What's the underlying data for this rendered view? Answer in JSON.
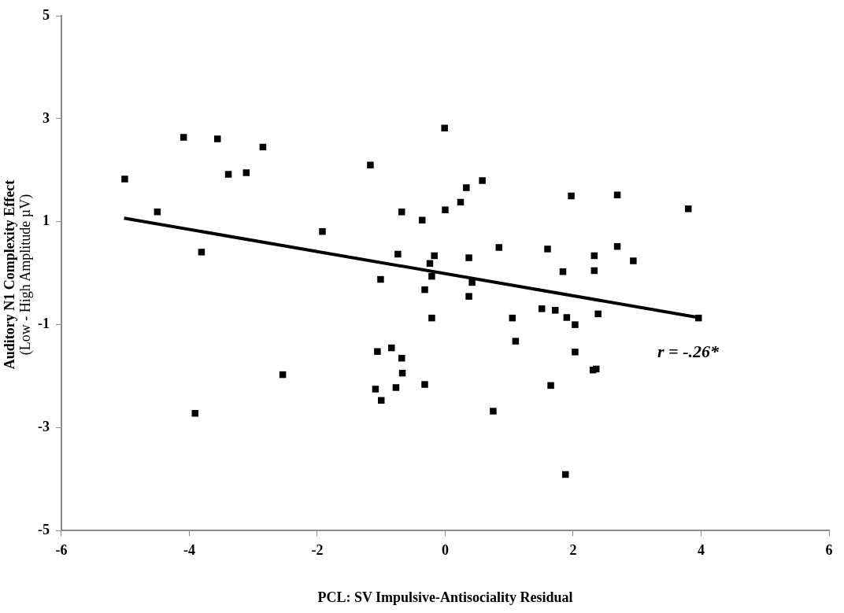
{
  "chart_data": {
    "type": "scatter",
    "xlabel": "PCL: SV Impulsive-Antisociality Residual",
    "ylabel": "Auditory N1 Complexity Effect\n(Low - High Amplitude µV)",
    "xlim": [
      -6,
      6
    ],
    "xticks": [
      -6,
      -4,
      -2,
      0,
      2,
      4,
      6
    ],
    "ylim": [
      -5,
      5
    ],
    "yticks": [
      -5,
      -3,
      -1,
      1,
      3,
      5
    ],
    "grid": false,
    "legend": false,
    "marker": "square",
    "annotations": [
      "r = -.26*"
    ],
    "series": [
      {
        "color": "#000000",
        "x": [
          -5.01,
          -4.5,
          -4.09,
          -3.56,
          -2.85,
          -3.39,
          -3.11,
          -3.81,
          -1.92,
          -1.17,
          -0.68,
          -0.36,
          -0.74,
          -0.17,
          -0.24,
          -0.21,
          -1.01,
          -0.32,
          -0.21,
          -2.54,
          -1.06,
          -0.84,
          -0.68,
          -0.67,
          -1.09,
          -0.77,
          -1.0,
          -0.32,
          -3.91,
          -0.01,
          0.0,
          0.58,
          0.33,
          0.24,
          1.97,
          2.69,
          3.8,
          0.37,
          0.84,
          1.6,
          2.69,
          2.33,
          2.94,
          1.84,
          2.33,
          0.42,
          0.37,
          1.05,
          1.51,
          1.72,
          1.9,
          2.03,
          2.39,
          3.96,
          1.1,
          2.03,
          2.31,
          2.36,
          1.65,
          0.75,
          1.88
        ],
        "values": [
          1.83,
          1.19,
          2.64,
          2.61,
          2.45,
          1.92,
          1.95,
          0.41,
          0.81,
          2.1,
          1.19,
          1.03,
          0.37,
          0.34,
          0.19,
          -0.06,
          -0.12,
          -0.32,
          -0.87,
          -1.97,
          -1.52,
          -1.45,
          -1.65,
          -1.94,
          -2.25,
          -2.22,
          -2.47,
          -2.16,
          -2.72,
          2.82,
          1.23,
          1.8,
          1.66,
          1.38,
          1.5,
          1.52,
          1.25,
          0.3,
          0.5,
          0.47,
          0.52,
          0.34,
          0.24,
          0.03,
          0.05,
          -0.18,
          -0.45,
          -0.87,
          -0.69,
          -0.72,
          -0.86,
          -1.0,
          -0.79,
          -0.87,
          -1.32,
          -1.53,
          -1.88,
          -1.86,
          -2.18,
          -2.68,
          -3.91
        ]
      },
      {
        "type": "line",
        "marker": "none",
        "color": "#000000",
        "x": [
          -5.02,
          3.96
        ],
        "values": [
          1.07,
          -0.86
        ]
      }
    ]
  }
}
